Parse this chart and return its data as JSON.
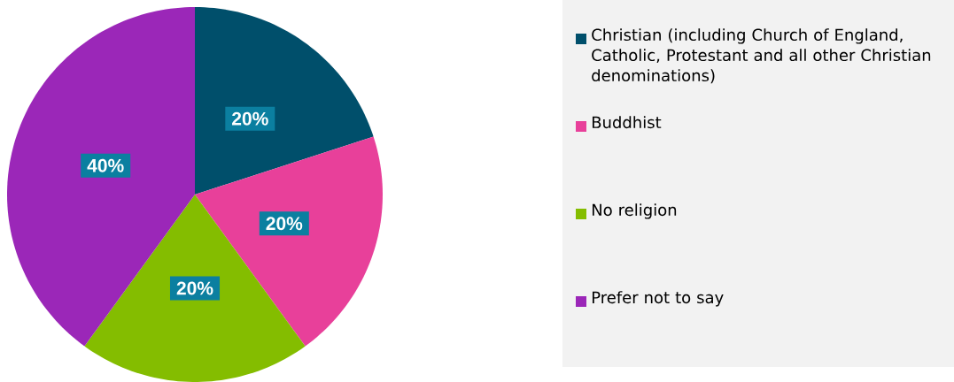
{
  "chart_data": {
    "type": "pie",
    "categories": [
      "Christian (including Church of England, Catholic, Protestant and all other Christian denominations)",
      "Buddhist",
      "No religion",
      "Prefer not to say"
    ],
    "values": [
      20,
      20,
      20,
      40
    ],
    "value_labels": [
      "20%",
      "20%",
      "20%",
      "40%"
    ],
    "colors": [
      "#004f6b",
      "#e8409a",
      "#84bd00",
      "#9b27b8"
    ],
    "legend": "right"
  }
}
